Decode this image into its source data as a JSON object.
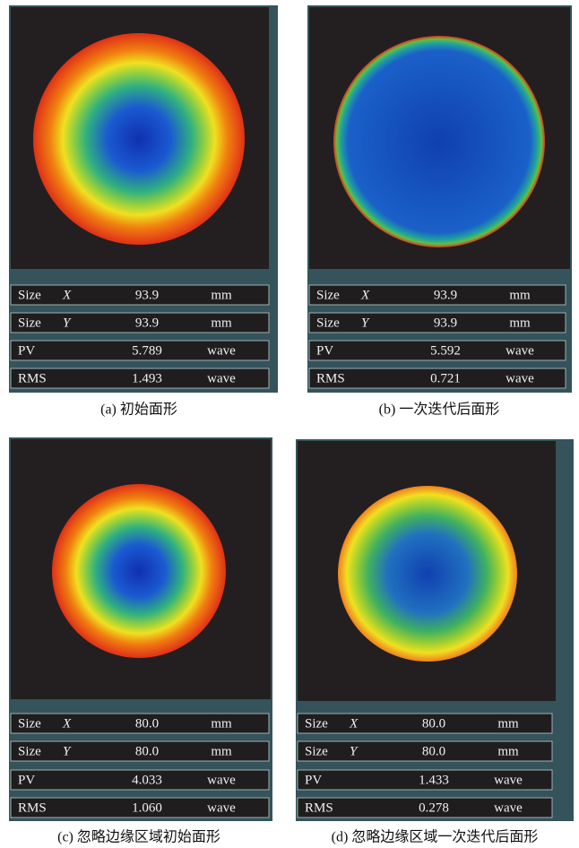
{
  "panels": [
    {
      "caption": "(a) 初始面形",
      "rows": [
        [
          "Size",
          "X",
          "93.9",
          "mm"
        ],
        [
          "Size",
          "Y",
          "93.9",
          "mm"
        ],
        [
          "PV",
          "5.789",
          "wave"
        ],
        [
          "RMS",
          "1.493",
          "wave"
        ]
      ]
    },
    {
      "caption": "(b) 一次迭代后面形",
      "rows": [
        [
          "Size",
          "X",
          "93.9",
          "mm"
        ],
        [
          "Size",
          "Y",
          "93.9",
          "mm"
        ],
        [
          "PV",
          "5.592",
          "wave"
        ],
        [
          "RMS",
          "0.721",
          "wave"
        ]
      ]
    },
    {
      "caption": "(c) 忽略边缘区域初始面形",
      "rows": [
        [
          "Size",
          "X",
          "80.0",
          "mm"
        ],
        [
          "Size",
          "Y",
          "80.0",
          "mm"
        ],
        [
          "PV",
          "4.033",
          "wave"
        ],
        [
          "RMS",
          "1.060",
          "wave"
        ]
      ]
    },
    {
      "caption": "(d) 忽略边缘区域一次迭代后面形",
      "rows": [
        [
          "Size",
          "X",
          "80.0",
          "mm"
        ],
        [
          "Size",
          "Y",
          "80.0",
          "mm"
        ],
        [
          "PV",
          "1.433",
          "wave"
        ],
        [
          "RMS",
          "0.278",
          "wave"
        ]
      ]
    }
  ]
}
